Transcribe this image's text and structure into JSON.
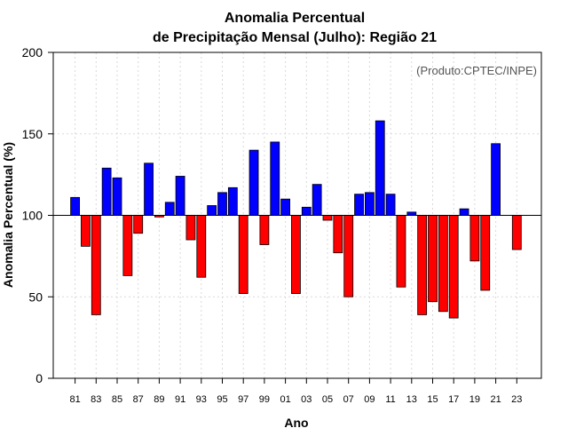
{
  "chart_data": {
    "type": "bar",
    "title_line1": "Anomalia Percentual",
    "title_line2": "de Precipitação Mensal (Julho): Região 21",
    "xlabel": "Ano",
    "ylabel": "Anomalia Percentual (%)",
    "credit": "(Produto:CPTEC/INPE)",
    "baseline": 100,
    "ylim": [
      0,
      200
    ],
    "yticks": [
      0,
      50,
      100,
      150,
      200
    ],
    "colors": {
      "above": "#0000ff",
      "below": "#ff0000"
    },
    "xtick_labels": [
      "81",
      "83",
      "85",
      "87",
      "89",
      "91",
      "93",
      "95",
      "97",
      "99",
      "01",
      "03",
      "05",
      "07",
      "09",
      "11",
      "13",
      "15",
      "17",
      "19",
      "21",
      "23"
    ],
    "categories": [
      "1981",
      "1982",
      "1983",
      "1984",
      "1985",
      "1986",
      "1987",
      "1988",
      "1989",
      "1990",
      "1991",
      "1992",
      "1993",
      "1994",
      "1995",
      "1996",
      "1997",
      "1998",
      "1999",
      "2000",
      "2001",
      "2002",
      "2003",
      "2004",
      "2005",
      "2006",
      "2007",
      "2008",
      "2009",
      "2010",
      "2011",
      "2012",
      "2013",
      "2014",
      "2015",
      "2016",
      "2017",
      "2018",
      "2019",
      "2020",
      "2021",
      "2022",
      "2023"
    ],
    "values": [
      111,
      81,
      39,
      129,
      123,
      63,
      89,
      132,
      99,
      108,
      124,
      85,
      62,
      106,
      114,
      117,
      52,
      140,
      82,
      145,
      110,
      52,
      105,
      119,
      97,
      77,
      50,
      113,
      114,
      158,
      113,
      56,
      102,
      39,
      47,
      41,
      37,
      104,
      72,
      54,
      144,
      100,
      79
    ]
  }
}
